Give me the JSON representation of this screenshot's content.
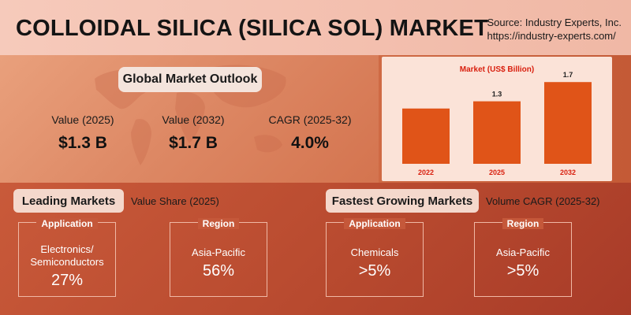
{
  "header": {
    "title": "COLLOIDAL SILICA (SILICA SOL) MARKET",
    "source_line1": "Source: Industry Experts, Inc.",
    "source_line2": "https://industry-experts.com/"
  },
  "outlook": {
    "heading": "Global Market Outlook",
    "metrics": [
      {
        "label": "Value (2025)",
        "value": "$1.3 B"
      },
      {
        "label": "Value (2032)",
        "value": "$1.7 B"
      },
      {
        "label": "CAGR (2025-32)",
        "value": "4.0%"
      }
    ]
  },
  "chart_data": {
    "type": "bar",
    "title": "Market (US$ Billion)",
    "categories": [
      "2022",
      "2025",
      "2032"
    ],
    "values": [
      1.15,
      1.3,
      1.7
    ],
    "data_labels": [
      "",
      "1.3",
      "1.7"
    ],
    "ylim": [
      0,
      1.9
    ],
    "bar_color": "#e05418",
    "title_color": "#d9200f",
    "grid": false
  },
  "leading": {
    "heading": "Leading Markets",
    "subheading": "Value Share (2025)",
    "cards": [
      {
        "head": "Application",
        "name": "Electronics/ Semiconductors",
        "value": "27%"
      },
      {
        "head": "Region",
        "name": "Asia-Pacific",
        "value": "56%"
      }
    ]
  },
  "fastest": {
    "heading": "Fastest Growing Markets",
    "subheading": "Volume CAGR (2025-32)",
    "cards": [
      {
        "head": "Application",
        "name": "Chemicals",
        "value": ">5%"
      },
      {
        "head": "Region",
        "name": "Asia-Pacific",
        "value": ">5%"
      }
    ]
  }
}
